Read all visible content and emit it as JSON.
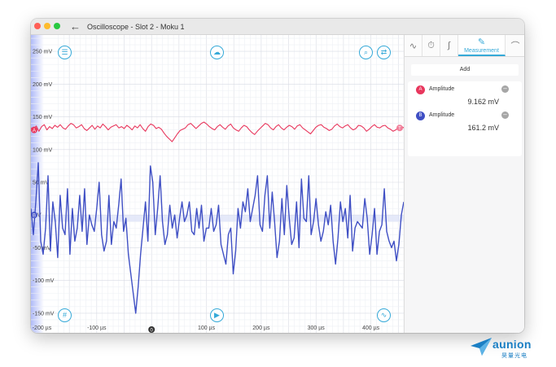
{
  "window": {
    "title": "Oscilloscope - Slot 2 - Moku 1"
  },
  "plot": {
    "y_ticks": [
      {
        "label": "250 mV",
        "value": 250
      },
      {
        "label": "200 mV",
        "value": 200
      },
      {
        "label": "150 mV",
        "value": 150
      },
      {
        "label": "100 mV",
        "value": 100
      },
      {
        "label": "50 mV",
        "value": 50
      },
      {
        "label": "0 V",
        "value": 0
      },
      {
        "label": "-50 mV",
        "value": -50
      },
      {
        "label": "-100 mV",
        "value": -100
      },
      {
        "label": "-150 mV",
        "value": -150
      }
    ],
    "x_ticks": [
      {
        "label": "-200 µs",
        "value": -200
      },
      {
        "label": "-100 µs",
        "value": -100
      },
      {
        "label": "100 µs",
        "value": 100
      },
      {
        "label": "200 µs",
        "value": 200
      },
      {
        "label": "300 µs",
        "value": 300
      },
      {
        "label": "400 µs",
        "value": 400
      }
    ],
    "trigger_marker": "0",
    "channel_a_marker": "A",
    "channel_b_marker": "B",
    "channel_a_trigger": "T"
  },
  "panel": {
    "tabs": [
      {
        "icon": "sine-wave-icon",
        "glyph": "∿"
      },
      {
        "icon": "stopwatch-icon",
        "glyph": "⏱"
      },
      {
        "icon": "edge-icon",
        "glyph": "∫"
      },
      {
        "icon": "ruler-icon",
        "glyph": "✎",
        "label": "Measurement"
      },
      {
        "icon": "gauge-icon",
        "glyph": "⌒"
      }
    ],
    "add_label": "Add",
    "measurements": [
      {
        "channel": "A",
        "name": "Amplitude",
        "value": "9.162 mV",
        "color": "#e8375d"
      },
      {
        "channel": "B",
        "name": "Amplitude",
        "value": "161.2 mV",
        "color": "#3f4fc4"
      }
    ]
  },
  "logo": {
    "word": "aunion",
    "sub": "昊量光电"
  },
  "colors": {
    "accent": "#35a9d8",
    "channel_a": "#e8375d",
    "channel_b": "#3f4fc4"
  },
  "chart_data": {
    "type": "line",
    "xlim": [
      -220,
      460
    ],
    "ylim": [
      -175,
      275
    ],
    "series": [
      {
        "name": "A",
        "color": "#e8375d",
        "y": [
          133,
          131,
          136,
          128,
          135,
          138,
          130,
          135,
          132,
          137,
          134,
          138,
          133,
          131,
          136,
          140,
          138,
          133,
          135,
          138,
          132,
          129,
          133,
          137,
          131,
          136,
          133,
          139,
          135,
          130,
          134,
          136,
          138,
          133,
          135,
          132,
          137,
          134,
          130,
          136,
          133,
          138,
          132,
          128,
          135,
          139,
          137,
          132,
          134,
          131,
          125,
          120,
          116,
          112,
          118,
          124,
          129,
          131,
          133,
          138,
          140,
          136,
          132,
          136,
          140,
          142,
          139,
          135,
          132,
          130,
          135,
          138,
          134,
          131,
          136,
          139,
          133,
          130,
          128,
          133,
          137,
          135,
          130,
          126,
          123,
          128,
          132,
          136,
          140,
          138,
          133,
          130,
          135,
          138,
          133,
          130,
          134,
          137,
          135,
          131,
          136,
          138,
          133,
          130,
          127,
          124,
          129,
          134,
          137,
          138,
          134,
          132,
          129,
          131,
          136,
          139,
          135,
          133,
          136,
          138,
          133,
          130,
          132,
          137,
          136,
          133,
          128,
          131,
          135,
          138,
          134,
          133,
          136,
          137,
          133,
          131,
          128,
          130,
          134,
          136,
          133
        ]
      },
      {
        "name": "B",
        "color": "#3f4fc4",
        "y": [
          10,
          -30,
          20,
          80,
          -40,
          -60,
          -20,
          60,
          -55,
          20,
          -10,
          -65,
          30,
          -20,
          -30,
          40,
          -60,
          10,
          -40,
          -20,
          30,
          -25,
          40,
          -45,
          0,
          -15,
          -25,
          10,
          50,
          -30,
          -55,
          -40,
          30,
          -45,
          -10,
          -20,
          15,
          55,
          -25,
          -5,
          -60,
          -90,
          -120,
          -150,
          -110,
          -60,
          -20,
          20,
          -40,
          75,
          50,
          -30,
          10,
          60,
          -10,
          -45,
          -30,
          15,
          -20,
          0,
          -35,
          -5,
          20,
          -10,
          0,
          20,
          -25,
          -30,
          10,
          -20,
          15,
          -40,
          -20,
          -20,
          10,
          -25,
          -15,
          15,
          -45,
          -60,
          -75,
          -30,
          -20,
          -90,
          -55,
          10,
          -20,
          20,
          5,
          40,
          -10,
          10,
          30,
          60,
          -15,
          -25,
          30,
          60,
          -20,
          35,
          -10,
          -65,
          -40,
          25,
          -30,
          45,
          -5,
          -45,
          -35,
          20,
          -50,
          55,
          -5,
          -10,
          60,
          -30,
          -10,
          25,
          -15,
          -40,
          -25,
          5,
          -15,
          15,
          -40,
          -75,
          -35,
          20,
          -10,
          10,
          -35,
          30,
          -55,
          -20,
          -10,
          -15,
          -20,
          25,
          -5,
          -60,
          -30,
          10,
          -60,
          -25,
          -15,
          40,
          -25,
          -40,
          -50,
          -40,
          -70,
          -45,
          0,
          20
        ]
      }
    ]
  }
}
